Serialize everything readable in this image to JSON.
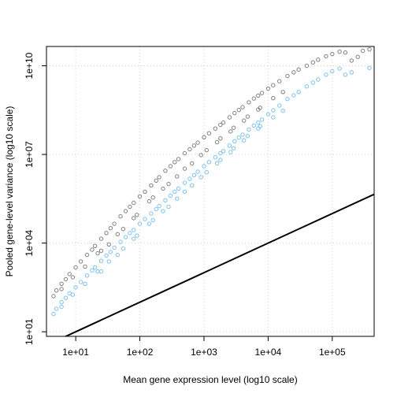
{
  "chart_data": {
    "type": "scatter",
    "title": "",
    "xlabel": "Mean gene expression level (log10 scale)",
    "ylabel": "Pooled gene-level variance (log10 scale)",
    "xscale": "log10",
    "yscale": "log10",
    "xlim": [
      3.5,
      450000
    ],
    "ylim": [
      7,
      45000000000
    ],
    "xticks": [
      10,
      100,
      1000,
      10000,
      100000
    ],
    "xtick_labels": [
      "1e+01",
      "1e+02",
      "1e+03",
      "1e+04",
      "1e+05"
    ],
    "yticks": [
      10,
      10000,
      10000000,
      10000000000
    ],
    "ytick_labels": [
      "1e+01",
      "1e+04",
      "1e+07",
      "1e+10"
    ],
    "grid": true,
    "legend": "none",
    "series": [
      {
        "color": "#808080",
        "marker": "open-circle",
        "x": [
          4.5,
          5,
          6,
          7,
          8,
          10,
          12,
          15,
          18,
          20,
          25,
          30,
          35,
          40,
          50,
          60,
          70,
          80,
          100,
          120,
          150,
          180,
          200,
          250,
          300,
          350,
          400,
          500,
          600,
          700,
          800,
          1000,
          1200,
          1500,
          1800,
          2000,
          2500,
          3000,
          3500,
          4000,
          5000,
          6000,
          7000,
          8000,
          10000,
          12000,
          15000,
          20000,
          25000,
          30000,
          40000,
          50000,
          60000,
          80000,
          100000,
          130000,
          160000,
          200000,
          250000,
          300000,
          380000,
          6,
          9,
          14,
          22,
          33,
          55,
          90,
          140,
          230,
          380,
          650,
          1100,
          1800,
          2900,
          4800,
          7500,
          12000,
          17000,
          25,
          45,
          80,
          160,
          280,
          500,
          900,
          1600,
          2600,
          4200,
          7000
        ],
        "y": [
          160,
          250,
          420,
          600,
          900,
          1500,
          2400,
          4000,
          6000,
          8000,
          14000,
          22000,
          32000,
          45000,
          80000,
          120000,
          170000,
          230000,
          380000,
          550000,
          900000,
          1300000,
          1700000,
          2800000,
          4000000,
          5500000,
          7000000,
          11000000,
          15000000,
          20000000,
          25000000,
          38000000,
          52000000,
          75000000,
          100000000,
          120000000,
          180000000,
          250000000,
          320000000,
          400000000,
          580000000,
          780000000,
          980000000,
          1200000000,
          1700000000,
          2200000000,
          3000000000,
          4500000000,
          6000000000,
          7500000000,
          10000000000,
          13000000000,
          16000000000,
          21000000000,
          25000000000,
          30000000000,
          28000000000,
          15000000000,
          20000000000,
          32000000000,
          36000000000,
          280,
          700,
          1600,
          4500,
          9000,
          30000,
          90000,
          260000,
          700000,
          1800000,
          5000000,
          14000000,
          35000000,
          80000000,
          190000000,
          380000000,
          800000000,
          1300000000,
          5500,
          20000,
          70000,
          350000,
          1000000,
          3300000,
          9500000,
          26000000,
          60000000,
          140000000,
          330000000
        ]
      },
      {
        "color": "#7ec0ee",
        "marker": "open-circle",
        "x": [
          4.5,
          5,
          6,
          7,
          8,
          10,
          12,
          15,
          18,
          20,
          25,
          30,
          35,
          40,
          50,
          60,
          70,
          80,
          100,
          120,
          150,
          180,
          200,
          250,
          300,
          350,
          400,
          500,
          600,
          700,
          800,
          1000,
          1200,
          1500,
          1800,
          2000,
          2500,
          3000,
          3500,
          4000,
          5000,
          6000,
          7000,
          8000,
          10000,
          12000,
          15000,
          20000,
          25000,
          30000,
          40000,
          50000,
          60000,
          80000,
          100000,
          130000,
          160000,
          200000,
          380000,
          6,
          9,
          14,
          22,
          33,
          55,
          90,
          140,
          230,
          380,
          650,
          1100,
          1800,
          2900,
          4800,
          7500,
          12000,
          17000,
          25,
          45,
          80,
          160,
          280,
          500,
          900,
          1600,
          2600,
          4200,
          7000
        ],
        "y": [
          40,
          60,
          100,
          140,
          200,
          320,
          480,
          800,
          1200,
          1500,
          2500,
          3800,
          5000,
          7000,
          11000,
          16000,
          22000,
          28000,
          45000,
          65000,
          100000,
          140000,
          180000,
          280000,
          400000,
          550000,
          700000,
          1100000,
          1500000,
          2000000,
          2600000,
          4000000,
          5500000,
          8000000,
          11000000,
          13000000,
          20000000,
          28000000,
          37000000,
          47000000,
          70000000,
          95000000,
          120000000,
          150000000,
          230000000,
          310000000,
          450000000,
          750000000,
          1000000000,
          1300000000,
          2000000000,
          2700000000,
          3400000000,
          5000000000,
          6500000000,
          8000000000,
          5000000000,
          6000000000,
          8500000000,
          70,
          180,
          420,
          1100,
          2400,
          6500,
          18000,
          45000,
          120000,
          320000,
          900000,
          2500000,
          6500000,
          16000000,
          42000000,
          90000000,
          180000000,
          300000000,
          1100,
          4000,
          14000,
          60000,
          170000,
          550000,
          1700000,
          5000000,
          12000000,
          30000000,
          75000000
        ]
      },
      {
        "color": "#000000",
        "marker": "line",
        "x": [
          3.5,
          450000
        ],
        "y": [
          3.5,
          450000
        ]
      }
    ]
  }
}
